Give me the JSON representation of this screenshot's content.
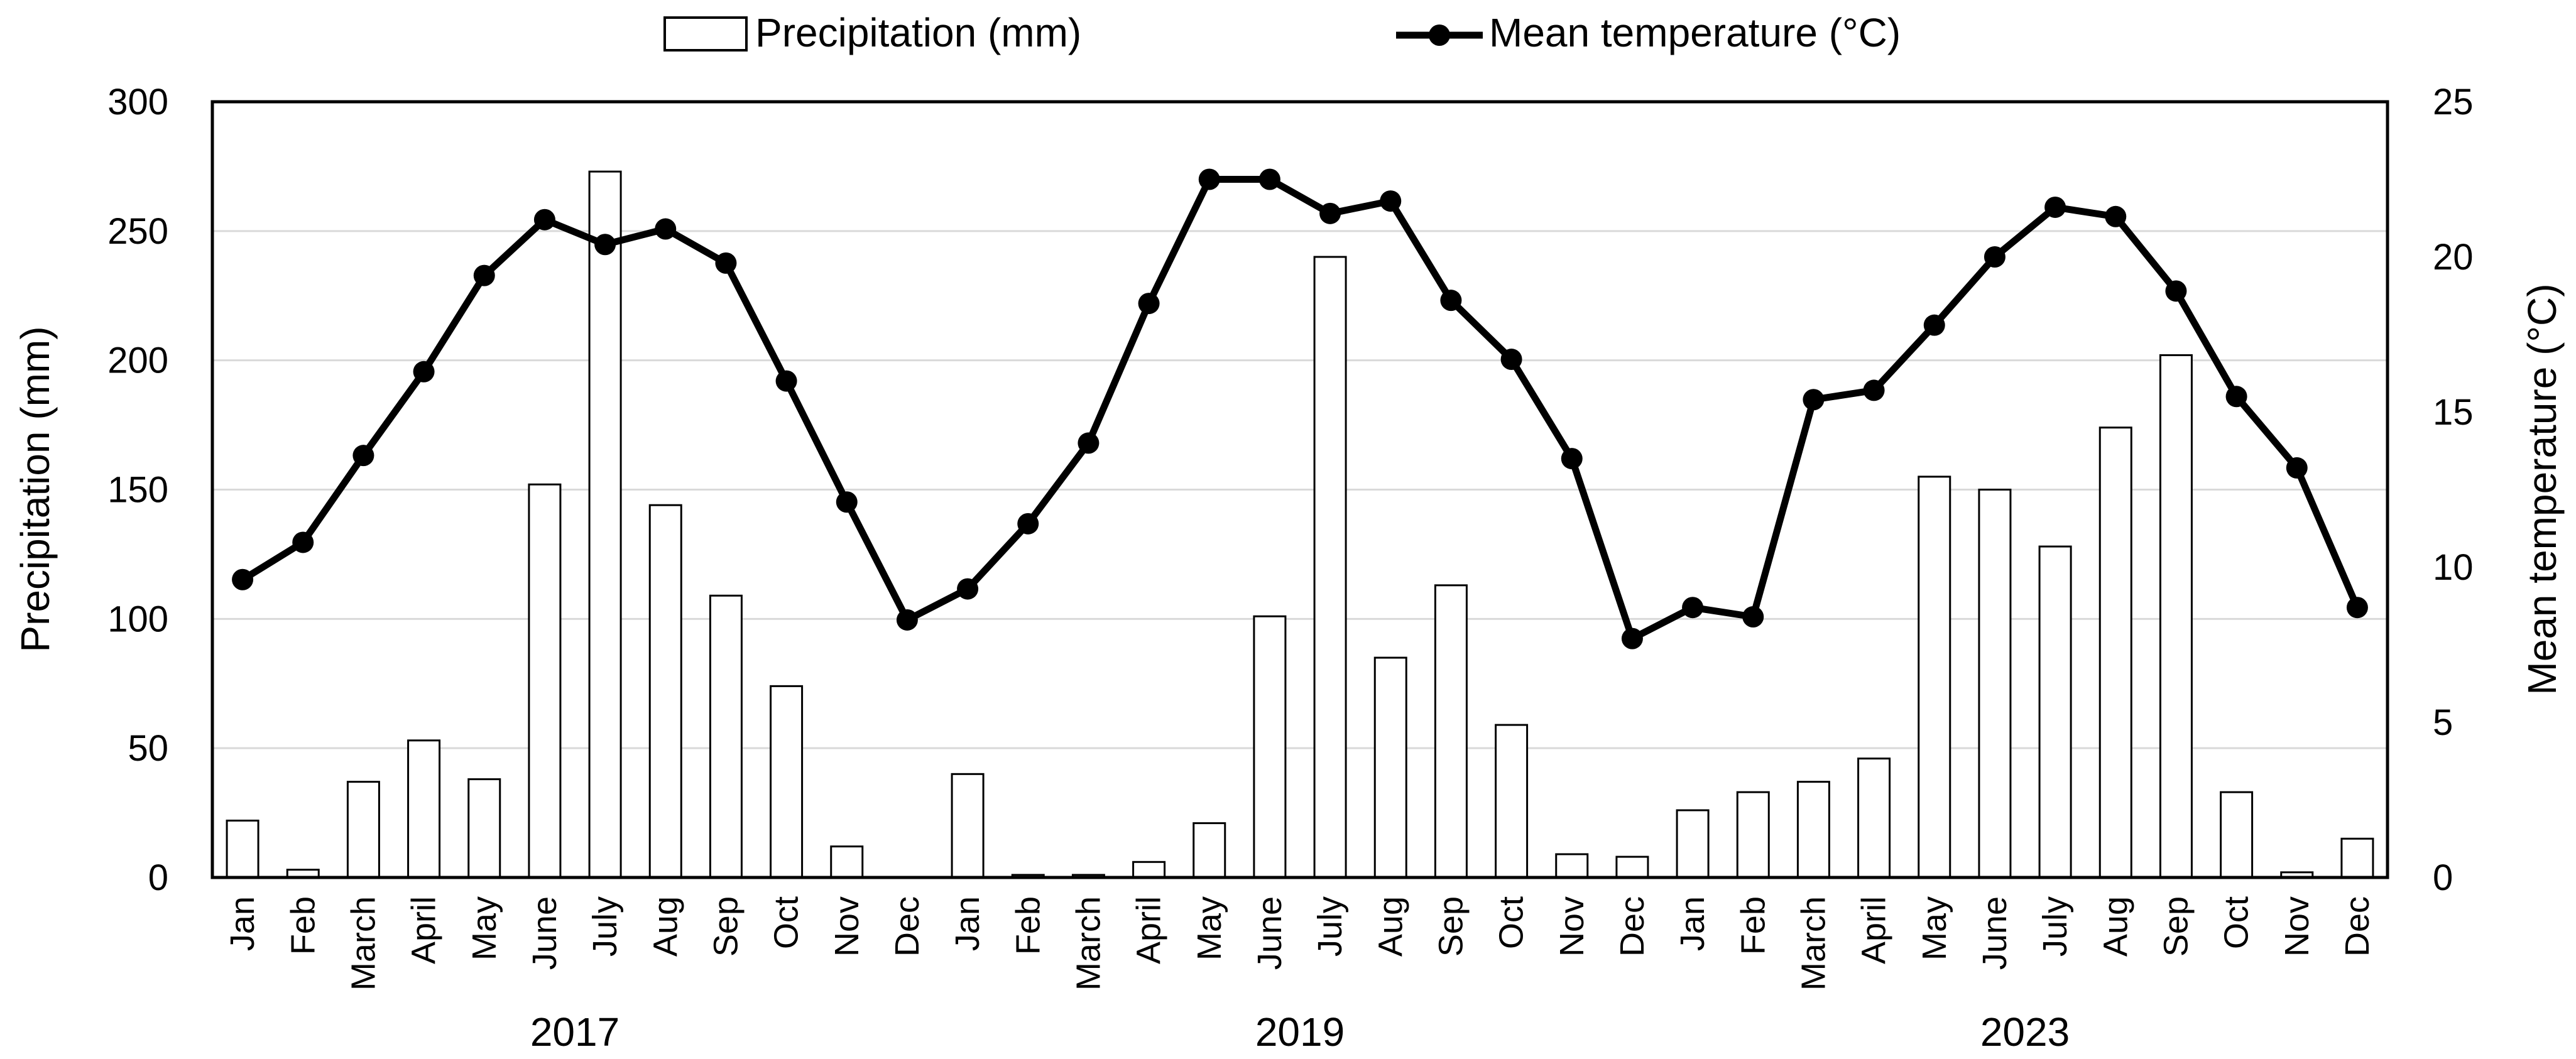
{
  "chart_data": {
    "type": "bar+line",
    "legend": {
      "placement": "top-center",
      "entries": [
        {
          "name": "Precipitation (mm)",
          "style": "bar"
        },
        {
          "name": "Mean temperature (°C)",
          "style": "line"
        }
      ]
    },
    "groups": [
      {
        "year": "2017",
        "months": [
          "Jan",
          "Feb",
          "March",
          "April",
          "May",
          "June",
          "July",
          "Aug",
          "Sep",
          "Oct",
          "Nov",
          "Dec"
        ]
      },
      {
        "year": "2019",
        "months": [
          "Jan",
          "Feb",
          "March",
          "April",
          "May",
          "June",
          "July",
          "Aug",
          "Sep",
          "Oct",
          "Nov",
          "Dec"
        ]
      },
      {
        "year": "2023",
        "months": [
          "Jan",
          "Feb",
          "March",
          "April",
          "May",
          "June",
          "July",
          "Aug",
          "Sep",
          "Oct",
          "Nov",
          "Dec"
        ]
      }
    ],
    "series": [
      {
        "name": "Precipitation (mm)",
        "type": "bar",
        "axis": "left",
        "values": [
          22,
          3,
          37,
          53,
          38,
          152,
          273,
          144,
          109,
          74,
          12,
          0,
          40,
          1,
          1,
          6,
          21,
          101,
          240,
          85,
          113,
          59,
          9,
          8,
          26,
          33,
          37,
          46,
          155,
          150,
          128,
          174,
          202,
          33,
          2,
          15
        ]
      },
      {
        "name": "Mean temperature (°C)",
        "type": "line",
        "axis": "right",
        "values": [
          9.6,
          10.8,
          13.6,
          16.3,
          19.4,
          21.2,
          20.4,
          20.9,
          19.8,
          16.0,
          12.1,
          8.3,
          9.3,
          11.4,
          14.0,
          18.5,
          22.5,
          22.5,
          21.4,
          21.8,
          18.6,
          16.7,
          13.5,
          7.7,
          8.7,
          8.4,
          15.4,
          15.7,
          17.8,
          20.0,
          21.6,
          21.3,
          18.9,
          15.5,
          13.2,
          8.7
        ]
      }
    ],
    "y_left": {
      "label": "Precipitation (mm)",
      "ylim": [
        0,
        300
      ],
      "ticks": [
        0,
        50,
        100,
        150,
        200,
        250,
        300
      ]
    },
    "y_right": {
      "label": "Mean temperature (°C)",
      "ylim": [
        0,
        25
      ],
      "ticks": [
        0,
        5,
        10,
        15,
        20,
        25
      ]
    },
    "grid": true,
    "colors": {
      "line": "#000000",
      "bar_fill": "#ffffff",
      "bar_stroke": "#000000",
      "grid": "#d9d9d9"
    }
  }
}
